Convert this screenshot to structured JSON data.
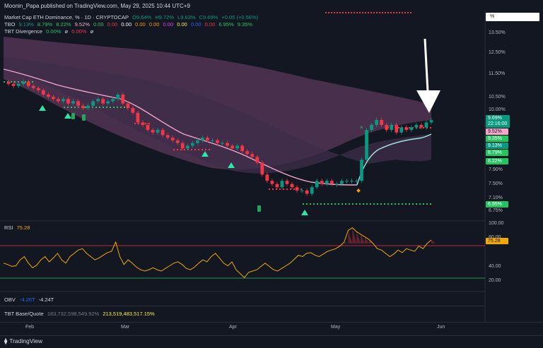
{
  "header": {
    "published": "Moonin_Papa published on TradingView.com, May 29, 2025 10:44 UTC+9"
  },
  "legend": {
    "line1": {
      "title": "Market Cap ETH Dominance, % · 1D · CRYPTOCAP",
      "o": "O9.64%",
      "h": "H9.72%",
      "l": "L9.63%",
      "c": "C9.69%",
      "chg": "+0.05 (+0.56%)"
    },
    "line2": {
      "name": "TBO",
      "values": [
        "9.13%",
        "8.79%",
        "8.22%",
        "9.52%",
        "0.00",
        "0.00",
        "0.00",
        "0.00",
        "0.00",
        "0.00",
        "0.00",
        "0.00",
        "0.00",
        "6.95%",
        "9.35%"
      ]
    },
    "line3": {
      "name": "TBT Divergence",
      "values": [
        "0.00%",
        "ø",
        "0.00%",
        "ø"
      ]
    }
  },
  "price_axis": {
    "unit_button": "%",
    "ticks": [
      "13.50%",
      "12.50%",
      "11.50%",
      "10.50%",
      "10.00%",
      "9.00%",
      "8.50%",
      "7.90%",
      "7.50%",
      "7.10%",
      "6.75%"
    ],
    "labels": [
      {
        "text": "9.69%",
        "sub": "22:16:00",
        "color": "#089981"
      },
      {
        "text": "9.52%",
        "color": "#f7a6ca"
      },
      {
        "text": "9.35%",
        "color": "#22c55e"
      },
      {
        "text": "9.13%",
        "color": "#089981"
      },
      {
        "text": "8.79%",
        "color": "#22c55e"
      },
      {
        "text": "8.22%",
        "color": "#22c55e"
      },
      {
        "text": "6.95%",
        "color": "#22c55e"
      }
    ]
  },
  "rsi_panel": {
    "name": "RSI",
    "value": "75.28",
    "ticks": [
      "100.00",
      "80.00",
      "60.00",
      "40.00",
      "20.00"
    ],
    "label": "75.28"
  },
  "obv": {
    "name": "OBV",
    "v1": "-4.26T",
    "v2": "-4.24T"
  },
  "tbt_base_quote": {
    "name": "TBT Base/Quote",
    "v1": "183,732,598,549.92%",
    "v2": "213,519,483,517.15%"
  },
  "xaxis": {
    "labels": [
      "Feb",
      "Mar",
      "Apr",
      "May",
      "Jun"
    ]
  },
  "footer": {
    "brand": "TradingView"
  },
  "chart_data": {
    "type": "candlestick",
    "symbol": "Market Cap ETH Dominance, %",
    "timeframe": "1D",
    "ylim": [
      6.6,
      14.0
    ],
    "x_labels": [
      "Feb",
      "Mar",
      "Apr",
      "May",
      "Jun"
    ],
    "close_series": [
      11.4,
      11.3,
      11.2,
      11.3,
      11.4,
      11.2,
      11.1,
      11.0,
      10.8,
      10.7,
      10.6,
      10.5,
      10.6,
      10.4,
      10.5,
      10.3,
      10.2,
      10.3,
      10.5,
      10.6,
      10.4,
      10.5,
      10.6,
      10.8,
      10.4,
      10.2,
      10.0,
      9.6,
      9.5,
      9.3,
      9.2,
      9.3,
      9.1,
      9.0,
      8.9,
      8.8,
      8.6,
      8.7,
      8.8,
      8.9,
      9.0,
      8.9,
      8.9,
      8.8,
      8.8,
      8.7,
      8.6,
      8.7,
      8.5,
      8.4,
      8.3,
      8.1,
      7.7,
      7.5,
      7.4,
      7.3,
      7.5,
      7.4,
      7.3,
      7.2,
      7.2,
      7.1,
      7.3,
      7.5,
      7.4,
      7.5,
      7.4,
      7.4,
      7.5,
      7.5,
      7.5,
      7.5,
      8.2,
      9.3,
      9.5,
      9.7,
      9.5,
      9.3,
      9.5,
      9.2,
      9.4,
      9.3,
      9.4,
      9.5,
      9.4,
      9.6,
      9.69
    ],
    "rsi": [
      40,
      38,
      35,
      36,
      45,
      50,
      40,
      33,
      37,
      45,
      50,
      42,
      48,
      55,
      45,
      40,
      50,
      55,
      60,
      62,
      55,
      50,
      45,
      48,
      52,
      56,
      58,
      72,
      50,
      38,
      45,
      40,
      34,
      30,
      28,
      30,
      33,
      30,
      28,
      32,
      36,
      40,
      42,
      38,
      32,
      30,
      34,
      40,
      45,
      42,
      50,
      55,
      48,
      40,
      36,
      42,
      30,
      24,
      18,
      26,
      28,
      30,
      35,
      40,
      35,
      30,
      28,
      32,
      36,
      40,
      46,
      52,
      50,
      55,
      56,
      52,
      50,
      54,
      58,
      60,
      62,
      66,
      72,
      90,
      94,
      88,
      84,
      80,
      76,
      70,
      62,
      60,
      55,
      50,
      54,
      60,
      56,
      62,
      60,
      58,
      66,
      62,
      70,
      75.28
    ],
    "rsi_levels": {
      "upper": 70,
      "lower": 30
    },
    "overlays": [
      "TBO fast line (pink)",
      "TBO slow line (teal)",
      "TBO cloud (purple)",
      "support line 6.95% (green dotted)",
      "resistance line 9.52% (red dotted)"
    ],
    "annotation": "downward arrow pointing to latest candle"
  }
}
